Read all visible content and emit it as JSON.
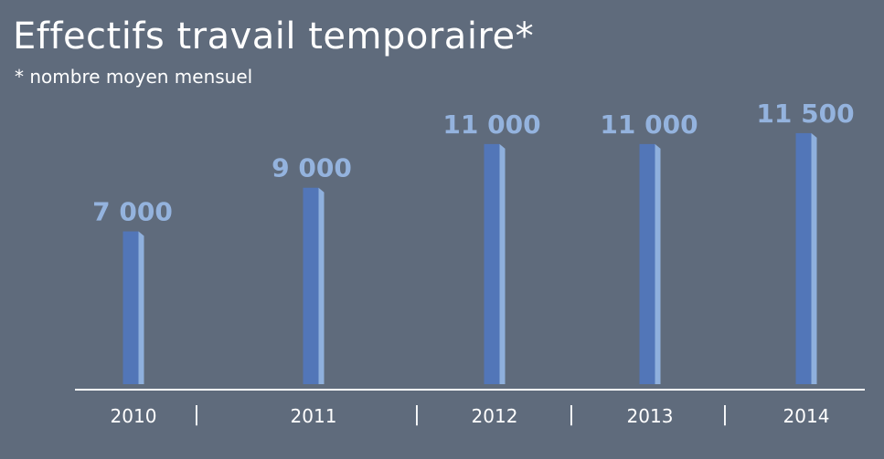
{
  "header": {
    "title": "Effectifs travail temporaire*",
    "subtitle": "* nombre moyen mensuel"
  },
  "colors": {
    "background": "#5f6b7c",
    "bar_front": "#5276b8",
    "bar_side": "#8fb0dd",
    "value_label": "#94b3de",
    "axis": "#ffffff",
    "text": "#ffffff"
  },
  "chart_data": {
    "type": "bar",
    "title": "Effectifs travail temporaire*",
    "subtitle": "* nombre moyen mensuel",
    "categories": [
      "2010",
      "2011",
      "2012",
      "2013",
      "2014"
    ],
    "values": [
      7000,
      9000,
      11000,
      11000,
      11500
    ],
    "value_labels": [
      "7 000",
      "9 000",
      "11 000",
      "11 000",
      "11 500"
    ],
    "xlabel": "",
    "ylabel": "",
    "ylim": [
      0,
      17600
    ],
    "grid": false,
    "legend": "none",
    "separator_glyph": "|"
  }
}
